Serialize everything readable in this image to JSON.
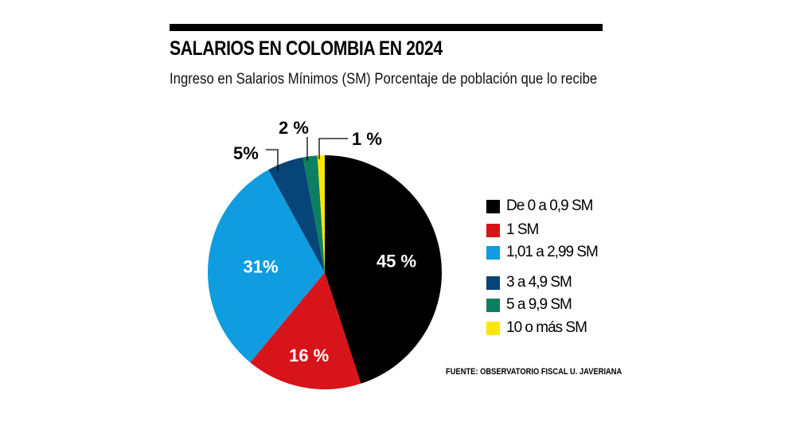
{
  "chart_data": {
    "type": "pie",
    "title": "SALARIOS EN COLOMBIA EN 2024",
    "subtitle": "Ingreso en Salarios Mínimos (SM) Porcentaje de población que lo recibe",
    "categories": [
      "De 0 a 0,9 SM",
      "1 SM",
      "1,01 a 2,99 SM",
      "3 a 4,9 SM",
      "5 a 9,9 SM",
      "10 o más SM"
    ],
    "values": [
      45,
      16,
      31,
      5,
      2,
      1
    ],
    "data_labels": [
      "45 %",
      "16 %",
      "31%",
      "5%",
      "2 %",
      "1 %"
    ],
    "colors": [
      "#000000",
      "#d7141a",
      "#0f9ce0",
      "#074478",
      "#0b8060",
      "#ffe600"
    ],
    "legend_position": "right",
    "source": "FUENTE: OBSERVATORIO FISCAL U. JAVERIANA"
  }
}
